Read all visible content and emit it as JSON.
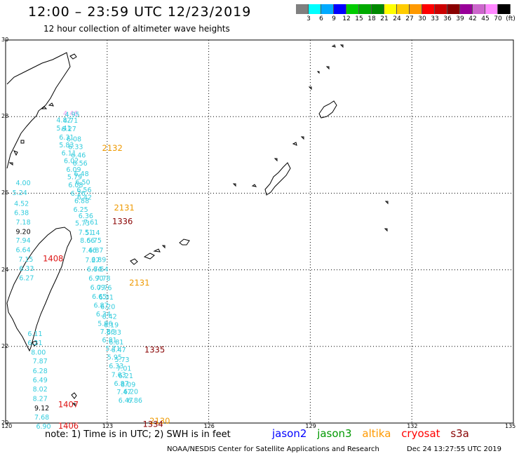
{
  "header": {
    "title": "12:00 – 23:59 UTC 12/23/2019",
    "subtitle": "12 hour collection of altimeter wave heights"
  },
  "legend": {
    "unit": "(ft)",
    "bins": [
      {
        "label": "3",
        "color": "#808080"
      },
      {
        "label": "6",
        "color": "#00ffff"
      },
      {
        "label": "9",
        "color": "#00aaff"
      },
      {
        "label": "12",
        "color": "#0000ff"
      },
      {
        "label": "15",
        "color": "#00cc00"
      },
      {
        "label": "18",
        "color": "#00aa00"
      },
      {
        "label": "21",
        "color": "#008800"
      },
      {
        "label": "24",
        "color": "#ffff00"
      },
      {
        "label": "27",
        "color": "#ffcc00"
      },
      {
        "label": "30",
        "color": "#ff9900"
      },
      {
        "label": "33",
        "color": "#ff0000"
      },
      {
        "label": "36",
        "color": "#cc0000"
      },
      {
        "label": "39",
        "color": "#880000"
      },
      {
        "label": "42",
        "color": "#990099"
      },
      {
        "label": "45",
        "color": "#cc66cc"
      },
      {
        "label": "70",
        "color": "#ff88ff"
      },
      {
        "label": "",
        "color": "#000000"
      }
    ]
  },
  "axes": {
    "lat_labels": [
      "30",
      "28",
      "26",
      "24",
      "22",
      "20"
    ],
    "lon_labels": [
      "120",
      "123",
      "126",
      "129",
      "132",
      "135"
    ]
  },
  "colors": {
    "obs": "#33ccdd",
    "time_orange": "#ee9900",
    "time_red": "#dd1111",
    "time_darkred": "#880000",
    "jason2": "#0000ff",
    "jason3": "#009900",
    "altika": "#ff9900",
    "cryosat": "#ff0000",
    "s3a": "#880000"
  },
  "observations": [
    {
      "v": "4.46",
      "lat": 28.02,
      "lon": 121.7,
      "c": "#ee99ee"
    },
    {
      "v": "4.95",
      "lat": 27.99,
      "lon": 121.75
    },
    {
      "v": "4.82",
      "lat": 27.85,
      "lon": 121.5
    },
    {
      "v": "4.71",
      "lat": 27.84,
      "lon": 121.7
    },
    {
      "v": "5.41",
      "lat": 27.64,
      "lon": 121.5
    },
    {
      "v": "6.27",
      "lat": 27.62,
      "lon": 121.65
    },
    {
      "v": "6.31",
      "lat": 27.4,
      "lon": 121.58
    },
    {
      "v": "6.08",
      "lat": 27.35,
      "lon": 121.8
    },
    {
      "v": "5.83",
      "lat": 27.2,
      "lon": 121.58
    },
    {
      "v": "6.33",
      "lat": 27.15,
      "lon": 121.85
    },
    {
      "v": "6.11",
      "lat": 26.99,
      "lon": 121.65
    },
    {
      "v": "6.46",
      "lat": 26.93,
      "lon": 121.93
    },
    {
      "v": "6.02",
      "lat": 26.79,
      "lon": 121.72
    },
    {
      "v": "6.56",
      "lat": 26.72,
      "lon": 121.98
    },
    {
      "v": "6.09",
      "lat": 26.56,
      "lon": 121.79
    },
    {
      "v": "6.48",
      "lat": 26.45,
      "lon": 122.02
    },
    {
      "v": "5.79",
      "lat": 26.36,
      "lon": 121.82
    },
    {
      "v": "6.50",
      "lat": 26.23,
      "lon": 122.06
    },
    {
      "v": "6.08",
      "lat": 26.15,
      "lon": 121.85
    },
    {
      "v": "6.56",
      "lat": 26.03,
      "lon": 122.1
    },
    {
      "v": "6.26",
      "lat": 25.93,
      "lon": 121.92
    },
    {
      "v": "6.42",
      "lat": 25.83,
      "lon": 122.11
    },
    {
      "v": "6.88",
      "lat": 25.74,
      "lon": 122.03
    },
    {
      "v": "6.25",
      "lat": 25.51,
      "lon": 122.0
    },
    {
      "v": "6.36",
      "lat": 25.35,
      "lon": 122.15
    },
    {
      "v": "5.73",
      "lat": 25.16,
      "lon": 122.05
    },
    {
      "v": "7.61",
      "lat": 25.18,
      "lon": 122.3
    },
    {
      "v": "7.51",
      "lat": 24.92,
      "lon": 122.15
    },
    {
      "v": "5.14",
      "lat": 24.91,
      "lon": 122.35
    },
    {
      "v": "8.66",
      "lat": 24.71,
      "lon": 122.2
    },
    {
      "v": "5.75",
      "lat": 24.71,
      "lon": 122.4
    },
    {
      "v": "7.46",
      "lat": 24.45,
      "lon": 122.25
    },
    {
      "v": "6.87",
      "lat": 24.45,
      "lon": 122.45
    },
    {
      "v": "7.27",
      "lat": 24.19,
      "lon": 122.35
    },
    {
      "v": "6.89",
      "lat": 24.2,
      "lon": 122.53
    },
    {
      "v": "6.64",
      "lat": 23.96,
      "lon": 122.4
    },
    {
      "v": "7.54",
      "lat": 23.96,
      "lon": 122.6
    },
    {
      "v": "6.90",
      "lat": 23.72,
      "lon": 122.45
    },
    {
      "v": "7.78",
      "lat": 23.72,
      "lon": 122.66
    },
    {
      "v": "6.09",
      "lat": 23.48,
      "lon": 122.5
    },
    {
      "v": "7.76",
      "lat": 23.47,
      "lon": 122.7
    },
    {
      "v": "6.65",
      "lat": 23.24,
      "lon": 122.55
    },
    {
      "v": "6.31",
      "lat": 23.22,
      "lon": 122.75
    },
    {
      "v": "6.87",
      "lat": 23.01,
      "lon": 122.6
    },
    {
      "v": "6.20",
      "lat": 22.98,
      "lon": 122.8
    },
    {
      "v": "6.34",
      "lat": 22.78,
      "lon": 122.67
    },
    {
      "v": "6.42",
      "lat": 22.72,
      "lon": 122.85
    },
    {
      "v": "5.96",
      "lat": 22.54,
      "lon": 122.72
    },
    {
      "v": "6.19",
      "lat": 22.5,
      "lon": 122.9
    },
    {
      "v": "7.86",
      "lat": 22.33,
      "lon": 122.79
    },
    {
      "v": "6.33",
      "lat": 22.31,
      "lon": 122.98
    },
    {
      "v": "6.81",
      "lat": 22.11,
      "lon": 122.85
    },
    {
      "v": "6.81",
      "lat": 22.05,
      "lon": 123.05
    },
    {
      "v": "5.71",
      "lat": 21.89,
      "lon": 122.95
    },
    {
      "v": "6.47",
      "lat": 21.85,
      "lon": 123.12
    },
    {
      "v": "5.95",
      "lat": 21.66,
      "lon": 123.0
    },
    {
      "v": "5.73",
      "lat": 21.59,
      "lon": 123.22
    },
    {
      "v": "6.33",
      "lat": 21.43,
      "lon": 123.05
    },
    {
      "v": "7.01",
      "lat": 21.36,
      "lon": 123.28
    },
    {
      "v": "7.63",
      "lat": 21.2,
      "lon": 123.12
    },
    {
      "v": "6.21",
      "lat": 21.17,
      "lon": 123.33
    },
    {
      "v": "6.87",
      "lat": 20.97,
      "lon": 123.2
    },
    {
      "v": "8.09",
      "lat": 20.94,
      "lon": 123.4
    },
    {
      "v": "7.47",
      "lat": 20.75,
      "lon": 123.28
    },
    {
      "v": "6.20",
      "lat": 20.76,
      "lon": 123.48
    },
    {
      "v": "6.47",
      "lat": 20.53,
      "lon": 123.33
    },
    {
      "v": "6.86",
      "lat": 20.53,
      "lon": 123.6
    },
    {
      "v": "4.00",
      "lat": 26.21,
      "lon": 120.3
    },
    {
      "v": "5.24",
      "lat": 25.95,
      "lon": 120.2
    },
    {
      "v": "4.52",
      "lat": 25.67,
      "lon": 120.25
    },
    {
      "v": "6.38",
      "lat": 25.43,
      "lon": 120.25
    },
    {
      "v": "7.18",
      "lat": 25.18,
      "lon": 120.3
    },
    {
      "v": "9.20",
      "lat": 24.94,
      "lon": 120.3,
      "c": "#000000"
    },
    {
      "v": "7.94",
      "lat": 24.71,
      "lon": 120.3
    },
    {
      "v": "6.64",
      "lat": 24.46,
      "lon": 120.3
    },
    {
      "v": "7.15",
      "lat": 24.21,
      "lon": 120.38
    },
    {
      "v": "6.33",
      "lat": 23.97,
      "lon": 120.4
    },
    {
      "v": "6.27",
      "lat": 23.73,
      "lon": 120.4
    },
    {
      "v": "6.11",
      "lat": 22.27,
      "lon": 120.65
    },
    {
      "v": "6.21",
      "lat": 22.03,
      "lon": 120.65
    },
    {
      "v": "8.00",
      "lat": 21.79,
      "lon": 120.75
    },
    {
      "v": "7.87",
      "lat": 21.56,
      "lon": 120.8
    },
    {
      "v": "6.28",
      "lat": 21.3,
      "lon": 120.8
    },
    {
      "v": "6.49",
      "lat": 21.06,
      "lon": 120.8
    },
    {
      "v": "8.02",
      "lat": 20.82,
      "lon": 120.8
    },
    {
      "v": "8.27",
      "lat": 20.58,
      "lon": 120.8
    },
    {
      "v": "9.12",
      "lat": 20.33,
      "lon": 120.85,
      "c": "#000000"
    },
    {
      "v": "7.68",
      "lat": 20.09,
      "lon": 120.85
    },
    {
      "v": "6.90",
      "lat": 19.85,
      "lon": 120.9
    }
  ],
  "time_labels": [
    {
      "t": "2132",
      "lat": 27.11,
      "lon": 122.85,
      "c": "#ee9900"
    },
    {
      "t": "2131",
      "lat": 25.55,
      "lon": 123.2,
      "c": "#ee9900"
    },
    {
      "t": "1336",
      "lat": 25.19,
      "lon": 123.15,
      "c": "#880000"
    },
    {
      "t": "1408",
      "lat": 24.22,
      "lon": 121.1,
      "c": "#dd1111"
    },
    {
      "t": "2131",
      "lat": 23.59,
      "lon": 123.65,
      "c": "#ee9900"
    },
    {
      "t": "1335",
      "lat": 21.84,
      "lon": 124.1,
      "c": "#880000"
    },
    {
      "t": "1407",
      "lat": 20.41,
      "lon": 121.55,
      "c": "#dd1111"
    },
    {
      "t": "2130",
      "lat": 19.98,
      "lon": 124.25,
      "c": "#ee9900"
    },
    {
      "t": "1334",
      "lat": 19.9,
      "lon": 124.05,
      "c": "#880000"
    },
    {
      "t": "1406",
      "lat": 19.85,
      "lon": 121.55,
      "c": "#dd1111"
    }
  ],
  "note": "note:  1) Time is in UTC;  2) SWH is in feet",
  "missions": [
    "jason2",
    "jason3",
    "altika",
    "cryosat",
    "s3a"
  ],
  "footer": {
    "credit": "NOAA/NESDIS Center for Satellite Applications and Research",
    "generated": "Dec 24 13:27:55 UTC 2019"
  }
}
